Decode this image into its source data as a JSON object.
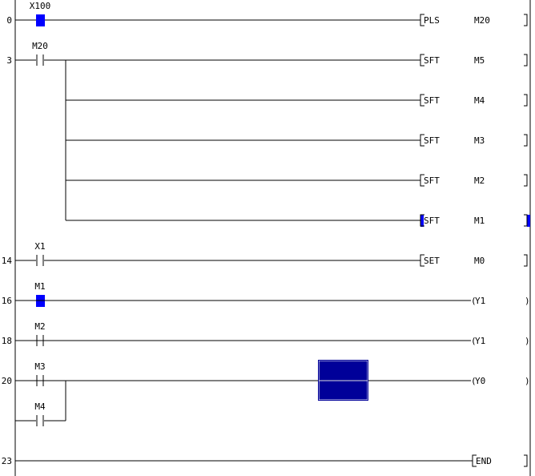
{
  "colors": {
    "highlight": "#0000ff",
    "cursor": "#000099",
    "line": "#000000"
  },
  "rungs": [
    {
      "step": "0",
      "row": 0,
      "contacts": [
        {
          "label": "X100",
          "highlighted": true
        }
      ],
      "output": {
        "kind": "instr",
        "op": "PLS",
        "operand": "M20"
      }
    },
    {
      "step": "3",
      "row": 1,
      "contacts": [
        {
          "label": "M20"
        }
      ],
      "output": {
        "kind": "instr",
        "op": "SFT",
        "operand": "M5"
      },
      "branches": [
        {
          "row": 2,
          "output": {
            "kind": "instr",
            "op": "SFT",
            "operand": "M4"
          }
        },
        {
          "row": 3,
          "output": {
            "kind": "instr",
            "op": "SFT",
            "operand": "M3"
          }
        },
        {
          "row": 4,
          "output": {
            "kind": "instr",
            "op": "SFT",
            "operand": "M2"
          }
        },
        {
          "row": 5,
          "output": {
            "kind": "instr",
            "op": "SFT",
            "operand": "M1",
            "highlighted": true
          }
        }
      ]
    },
    {
      "step": "14",
      "row": 6,
      "contacts": [
        {
          "label": "X1"
        }
      ],
      "output": {
        "kind": "instr",
        "op": "SET",
        "operand": "M0"
      }
    },
    {
      "step": "16",
      "row": 7,
      "contacts": [
        {
          "label": "M1",
          "highlighted": true
        }
      ],
      "output": {
        "kind": "coil",
        "operand": "Y1"
      }
    },
    {
      "step": "18",
      "row": 8,
      "contacts": [
        {
          "label": "M2"
        }
      ],
      "output": {
        "kind": "coil",
        "operand": "Y1"
      }
    },
    {
      "step": "20",
      "row": 9,
      "contacts": [
        {
          "label": "M3"
        }
      ],
      "parallel": {
        "row": 10,
        "label": "M4"
      },
      "cursor": true,
      "output": {
        "kind": "coil",
        "operand": "Y0"
      }
    },
    {
      "step": "23",
      "row": 11,
      "contacts": [],
      "output": {
        "kind": "instr",
        "op": "END",
        "operand": ""
      }
    }
  ]
}
